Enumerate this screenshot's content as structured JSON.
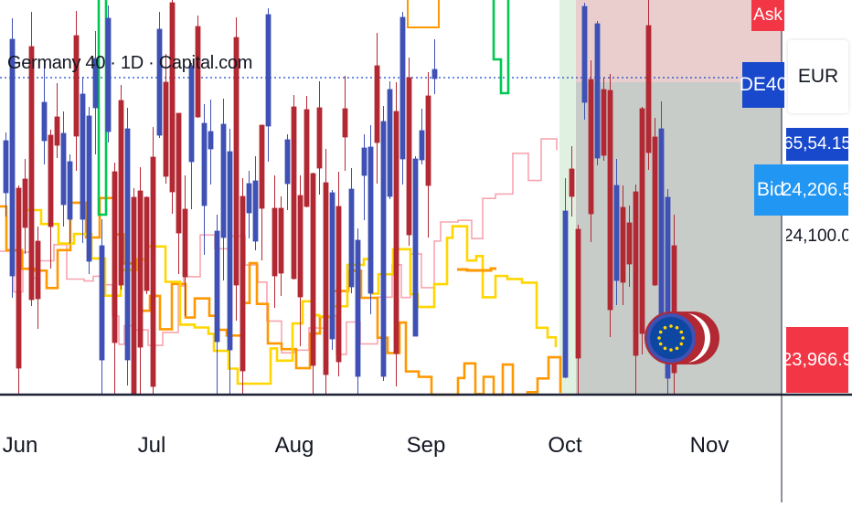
{
  "symbol": {
    "title": "Germany 40 · 1D · Capital.com",
    "ticker": "DE40",
    "currency": "EUR"
  },
  "tags": {
    "ask": "Ask",
    "bid": "Bid"
  },
  "price_scale": {
    "upper_partial": "65,54.15",
    "bid_price": "24,206.5",
    "level_partial": "24,100.0",
    "last_price": "23,966.9"
  },
  "colors": {
    "up_candle": "#3f51b5",
    "down_candle": "#b22833",
    "ask": "#f23645",
    "ticker_tag": "#1848cc",
    "bid": "#2196f3",
    "last_price": "#f23645",
    "step_orange": "#ff9800",
    "step_yellow": "#ffd600",
    "step_green": "#00c853",
    "step_pink": "#f8a5b0",
    "highlight_zone": "#c8e6c9",
    "shade_zone": "#b0b6b0",
    "baseline": "#1e2235"
  },
  "badge_icon": "eu-flag-coin-icon",
  "chart_data": {
    "type": "candlestick",
    "title": "Germany 40 · 1D · Capital.com",
    "x_axis_labels": [
      "Jun",
      "Jul",
      "Aug",
      "Sep",
      "Oct",
      "Nov"
    ],
    "y_labels_visible": [
      "65,54.15",
      "24,206.5",
      "24,100.0",
      "23,966.9"
    ],
    "last_price": 23966.9,
    "bid_price": 24206.5,
    "grid": false
  }
}
